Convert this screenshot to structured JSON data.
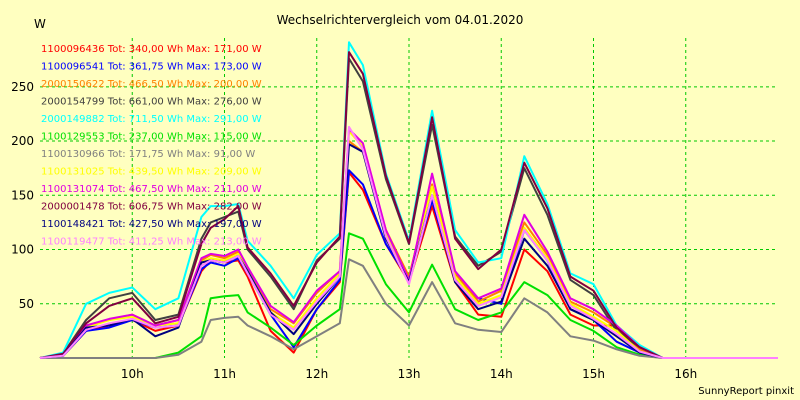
{
  "chart_data": {
    "type": "line",
    "title": "Wechselrichtervergleich vom 04.01.2020",
    "ylabel": "W",
    "footer": "SunnyReport pinxit",
    "x": [
      9.0,
      9.25,
      9.5,
      9.75,
      10.0,
      10.25,
      10.5,
      10.75,
      10.85,
      11.0,
      11.15,
      11.25,
      11.5,
      11.75,
      12.0,
      12.25,
      12.35,
      12.5,
      12.75,
      13.0,
      13.25,
      13.5,
      13.75,
      14.0,
      14.25,
      14.5,
      14.75,
      15.0,
      15.25,
      15.5,
      15.75,
      16.0,
      16.5,
      17.0
    ],
    "xlim": [
      9.0,
      17.0
    ],
    "ylim": [
      0,
      295
    ],
    "xticks": [
      {
        "value": 10,
        "label": "10h"
      },
      {
        "value": 11,
        "label": "11h"
      },
      {
        "value": 12,
        "label": "12h"
      },
      {
        "value": 13,
        "label": "13h"
      },
      {
        "value": 14,
        "label": "14h"
      },
      {
        "value": 15,
        "label": "15h"
      },
      {
        "value": 16,
        "label": "16h"
      }
    ],
    "yticks": [
      50,
      100,
      150,
      200,
      250
    ],
    "grid": true,
    "legend_position": "top-left",
    "series": [
      {
        "name": "1100096436 Tot: 340,00 Wh Max: 171,00 W",
        "color": "#ff0000",
        "values": [
          0,
          2,
          25,
          30,
          35,
          25,
          30,
          80,
          90,
          88,
          90,
          75,
          25,
          5,
          45,
          70,
          171,
          155,
          105,
          70,
          140,
          70,
          40,
          38,
          100,
          80,
          40,
          30,
          30,
          5,
          0,
          0,
          0,
          0
        ]
      },
      {
        "name": "1100096541 Tot: 361,75 Wh Max: 173,00 W",
        "color": "#0000ff",
        "values": [
          0,
          2,
          25,
          28,
          35,
          28,
          30,
          82,
          88,
          85,
          92,
          78,
          40,
          10,
          45,
          72,
          173,
          160,
          105,
          72,
          145,
          72,
          55,
          50,
          118,
          90,
          45,
          35,
          15,
          5,
          0,
          0,
          0,
          0
        ]
      },
      {
        "name": "2000150622 Tot: 466,50 Wh Max: 200,00 W",
        "color": "#ff8000",
        "values": [
          0,
          3,
          30,
          35,
          40,
          30,
          35,
          90,
          95,
          92,
          98,
          82,
          45,
          32,
          60,
          80,
          200,
          190,
          118,
          75,
          160,
          78,
          52,
          62,
          125,
          95,
          52,
          42,
          28,
          8,
          0,
          0,
          0,
          0
        ]
      },
      {
        "name": "2000154799 Tot: 661,00 Wh Max: 276,00 W",
        "color": "#404040",
        "values": [
          0,
          4,
          35,
          55,
          60,
          35,
          40,
          110,
          125,
          130,
          135,
          100,
          75,
          45,
          90,
          110,
          276,
          255,
          165,
          105,
          215,
          112,
          85,
          98,
          175,
          132,
          72,
          58,
          25,
          10,
          0,
          0,
          0,
          0
        ]
      },
      {
        "name": "2000149882 Tot: 711,50 Wh Max: 291,00 W",
        "color": "#00ffff",
        "values": [
          0,
          5,
          50,
          60,
          65,
          45,
          55,
          130,
          140,
          140,
          142,
          108,
          85,
          55,
          95,
          115,
          291,
          270,
          170,
          108,
          228,
          118,
          88,
          92,
          186,
          142,
          78,
          68,
          30,
          12,
          0,
          0,
          0,
          0
        ]
      },
      {
        "name": "1100129553 Tot: 237,00 Wh Max: 115,00 W",
        "color": "#00e000",
        "values": [
          0,
          0,
          0,
          0,
          0,
          0,
          5,
          20,
          55,
          57,
          58,
          42,
          28,
          12,
          30,
          45,
          115,
          110,
          68,
          42,
          86,
          45,
          35,
          42,
          70,
          58,
          35,
          25,
          10,
          3,
          0,
          0,
          0,
          0
        ]
      },
      {
        "name": "1100130966 Tot: 171,75 Wh Max: 91,00 W",
        "color": "#808080",
        "values": [
          0,
          0,
          0,
          0,
          0,
          0,
          3,
          15,
          35,
          37,
          38,
          30,
          20,
          8,
          20,
          32,
          91,
          85,
          50,
          30,
          70,
          32,
          26,
          24,
          55,
          42,
          20,
          16,
          8,
          2,
          0,
          0,
          0,
          0
        ]
      },
      {
        "name": "1100131025 Tot: 439,50 Wh Max: 209,00 W",
        "color": "#ffff00",
        "values": [
          0,
          3,
          28,
          35,
          38,
          30,
          32,
          88,
          92,
          90,
          96,
          80,
          42,
          28,
          55,
          78,
          209,
          195,
          115,
          72,
          158,
          75,
          50,
          58,
          120,
          92,
          50,
          38,
          25,
          6,
          0,
          0,
          0,
          0
        ]
      },
      {
        "name": "1100131074 Tot: 467,50 Wh Max: 211,00 W",
        "color": "#e000e0",
        "values": [
          0,
          3,
          30,
          36,
          40,
          30,
          35,
          92,
          96,
          94,
          100,
          84,
          48,
          33,
          62,
          80,
          211,
          198,
          118,
          72,
          170,
          80,
          55,
          64,
          132,
          98,
          55,
          45,
          30,
          10,
          0,
          0,
          0,
          0
        ]
      },
      {
        "name": "2000001478 Tot: 606,75 Wh Max: 282,00 W",
        "color": "#800040",
        "values": [
          0,
          4,
          32,
          48,
          55,
          32,
          38,
          105,
          120,
          128,
          140,
          102,
          78,
          48,
          88,
          112,
          282,
          262,
          168,
          106,
          222,
          110,
          82,
          100,
          180,
          138,
          75,
          62,
          28,
          10,
          0,
          0,
          0,
          0
        ]
      },
      {
        "name": "1100148421 Tot: 427,50 Wh Max: 197,00 W",
        "color": "#000080",
        "values": [
          0,
          2,
          28,
          30,
          36,
          20,
          28,
          88,
          90,
          88,
          94,
          80,
          42,
          22,
          50,
          75,
          197,
          190,
          110,
          70,
          150,
          70,
          45,
          52,
          110,
          85,
          45,
          35,
          20,
          5,
          0,
          0,
          0,
          0
        ]
      },
      {
        "name": "1100119477 Tot: 411,25 Wh Max: 213,00 W",
        "color": "#ff80ff",
        "values": [
          0,
          2,
          26,
          32,
          36,
          28,
          30,
          85,
          90,
          88,
          94,
          78,
          40,
          26,
          52,
          75,
          213,
          192,
          112,
          68,
          150,
          72,
          48,
          56,
          118,
          90,
          48,
          36,
          22,
          6,
          0,
          0,
          0,
          0
        ]
      }
    ]
  }
}
